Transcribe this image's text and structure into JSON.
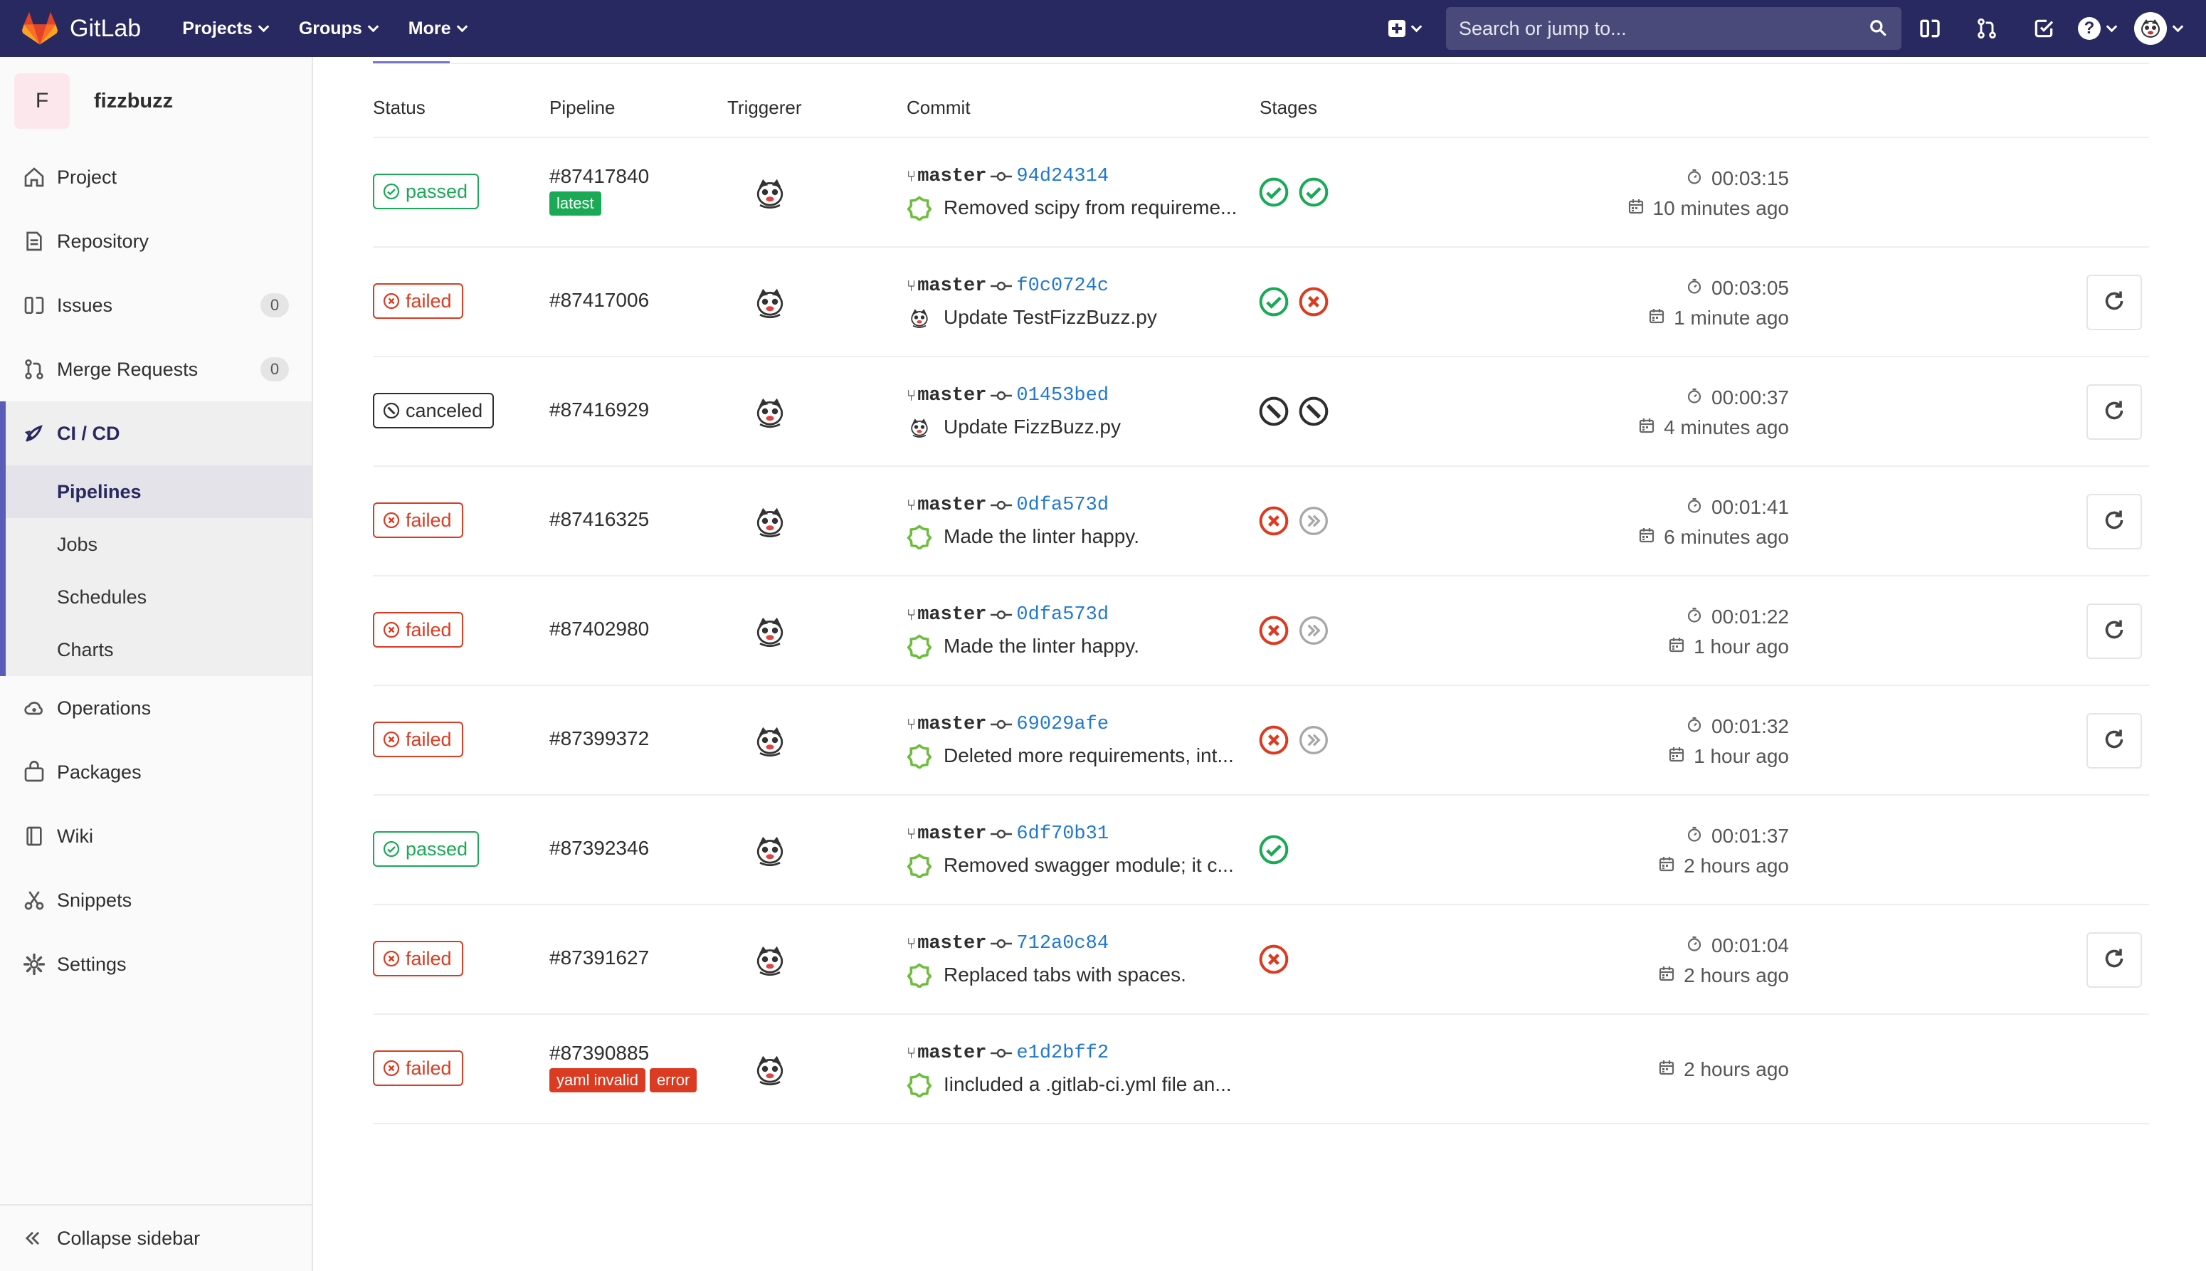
{
  "navbar": {
    "brand": "GitLab",
    "menu": [
      "Projects",
      "Groups",
      "More"
    ],
    "search_placeholder": "Search or jump to...",
    "help_glyph": "?",
    "icons": [
      "plus-square-icon",
      "search-icon",
      "sidebar-toggle-icon",
      "merge-request-icon",
      "todo-icon",
      "help-icon",
      "user-avatar"
    ],
    "color": "#292961"
  },
  "sidebar": {
    "project_initial": "F",
    "project_name": "fizzbuzz",
    "items": [
      {
        "label": "Project",
        "icon": "home-icon"
      },
      {
        "label": "Repository",
        "icon": "doc-icon"
      },
      {
        "label": "Issues",
        "icon": "issues-icon",
        "count": "0"
      },
      {
        "label": "Merge Requests",
        "icon": "merge-request-icon",
        "count": "0"
      }
    ],
    "active_group": {
      "label": "CI / CD",
      "icon": "rocket-icon",
      "sub_items": [
        "Pipelines",
        "Jobs",
        "Schedules",
        "Charts"
      ],
      "active_sub": "Pipelines"
    },
    "items_after": [
      {
        "label": "Operations",
        "icon": "cloud-icon"
      },
      {
        "label": "Packages",
        "icon": "package-icon"
      },
      {
        "label": "Wiki",
        "icon": "book-icon"
      },
      {
        "label": "Snippets",
        "icon": "scissors-icon"
      },
      {
        "label": "Settings",
        "icon": "gear-icon"
      }
    ],
    "collapse_label": "Collapse sidebar"
  },
  "table": {
    "headers": {
      "status": "Status",
      "pipeline": "Pipeline",
      "triggerer": "Triggerer",
      "commit": "Commit",
      "stages": "Stages"
    },
    "rows": [
      {
        "status": "passed",
        "id": "#87417840",
        "tags": [
          "latest"
        ],
        "branch": "master",
        "sha": "94d24314",
        "author": "green",
        "message": "Removed scipy from requireme...",
        "stages": [
          "passed",
          "passed"
        ],
        "duration": "00:03:15",
        "finished": "10 minutes ago",
        "retry": false
      },
      {
        "status": "failed",
        "id": "#87417006",
        "tags": [],
        "branch": "master",
        "sha": "f0c0724c",
        "author": "user",
        "message": "Update TestFizzBuzz.py",
        "stages": [
          "passed",
          "failed"
        ],
        "duration": "00:03:05",
        "finished": "1 minute ago",
        "retry": true
      },
      {
        "status": "canceled",
        "id": "#87416929",
        "tags": [],
        "branch": "master",
        "sha": "01453bed",
        "author": "user",
        "message": "Update FizzBuzz.py",
        "stages": [
          "canceled",
          "canceled"
        ],
        "duration": "00:00:37",
        "finished": "4 minutes ago",
        "retry": true
      },
      {
        "status": "failed",
        "id": "#87416325",
        "tags": [],
        "branch": "master",
        "sha": "0dfa573d",
        "author": "green",
        "message": "Made the linter happy.",
        "stages": [
          "failed",
          "skipped"
        ],
        "duration": "00:01:41",
        "finished": "6 minutes ago",
        "retry": true
      },
      {
        "status": "failed",
        "id": "#87402980",
        "tags": [],
        "branch": "master",
        "sha": "0dfa573d",
        "author": "green",
        "message": "Made the linter happy.",
        "stages": [
          "failed",
          "skipped"
        ],
        "duration": "00:01:22",
        "finished": "1 hour ago",
        "retry": true
      },
      {
        "status": "failed",
        "id": "#87399372",
        "tags": [],
        "branch": "master",
        "sha": "69029afe",
        "author": "green",
        "message": "Deleted more requirements, int...",
        "stages": [
          "failed",
          "skipped"
        ],
        "duration": "00:01:32",
        "finished": "1 hour ago",
        "retry": true
      },
      {
        "status": "passed",
        "id": "#87392346",
        "tags": [],
        "branch": "master",
        "sha": "6df70b31",
        "author": "green",
        "message": "Removed swagger module; it c...",
        "stages": [
          "passed"
        ],
        "duration": "00:01:37",
        "finished": "2 hours ago",
        "retry": false
      },
      {
        "status": "failed",
        "id": "#87391627",
        "tags": [],
        "branch": "master",
        "sha": "712a0c84",
        "author": "green",
        "message": "Replaced tabs with spaces.",
        "stages": [
          "failed"
        ],
        "duration": "00:01:04",
        "finished": "2 hours ago",
        "retry": true
      },
      {
        "status": "failed",
        "id": "#87390885",
        "tags": [
          "yaml invalid",
          "error"
        ],
        "branch": "master",
        "sha": "e1d2bff2",
        "author": "green",
        "message": "Iincluded a .gitlab-ci.yml file an...",
        "stages": [],
        "duration": "",
        "finished": "2 hours ago",
        "retry": false
      }
    ]
  },
  "colors": {
    "success": "#1aaa55",
    "danger": "#db3b21",
    "link": "#1f78d1",
    "nav": "#292961",
    "active_bar": "#5b5bb8"
  }
}
